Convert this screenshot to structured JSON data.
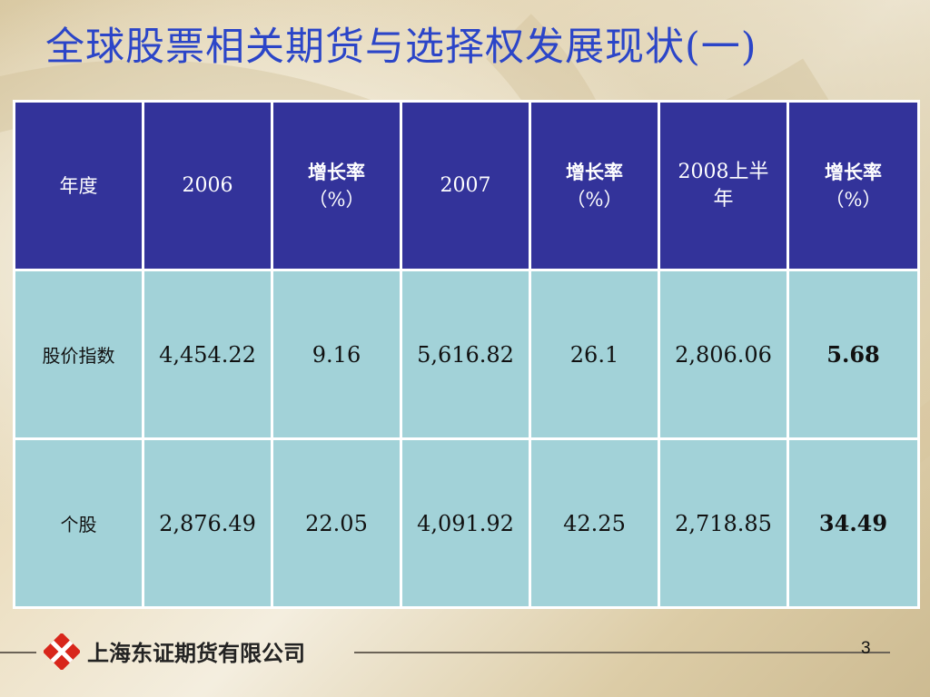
{
  "slide": {
    "title": "全球股票相关期货与选择权发展现状(一)",
    "page_number": "3"
  },
  "table": {
    "header": {
      "col0": "年度",
      "col1": "2006",
      "col2_line1": "增长率",
      "col2_line2": "（%）",
      "col3": "2007",
      "col4_line1": "增长率",
      "col4_line2": "（%）",
      "col5_line1": "2008上半",
      "col5_line2": "年",
      "col6_line1": "增长率",
      "col6_line2": "（%）"
    },
    "rows": [
      {
        "label": "股价指数",
        "v2006": "4,454.22",
        "g2006": "9.16",
        "v2007": "5,616.82",
        "g2007": "26.1",
        "v2008h1": "2,806.06",
        "g2008h1": "5.68"
      },
      {
        "label": "个股",
        "v2006": "2,876.49",
        "g2006": "22.05",
        "v2007": "4,091.92",
        "g2007": "42.25",
        "v2008h1": "2,718.85",
        "g2008h1": "34.49"
      }
    ]
  },
  "footer": {
    "company_name": "上海东证期货有限公司"
  },
  "colors": {
    "title": "#2b45c8",
    "header_bg": "#33339a",
    "body_bg": "#a2d2d8",
    "logo_red": "#d8261b"
  }
}
